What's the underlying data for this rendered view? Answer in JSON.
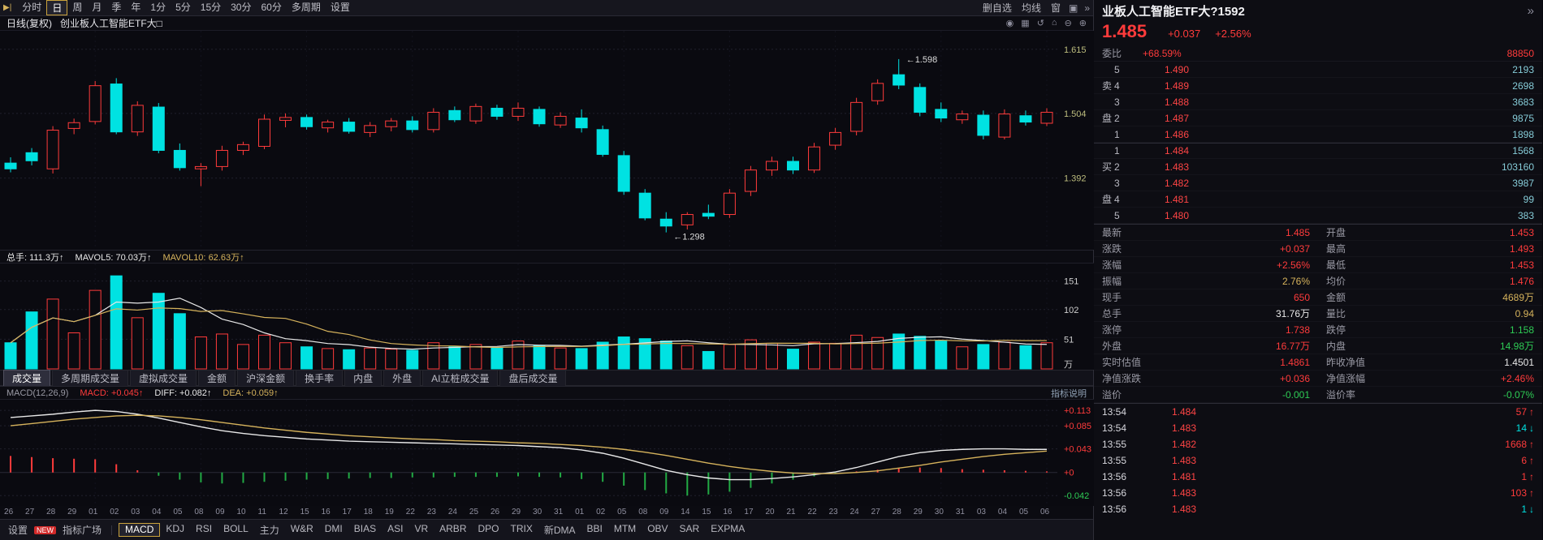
{
  "colors": {
    "up": "#ff3b3b",
    "down": "#00e2e2",
    "macd_neg": "#22aa44",
    "ma5": "#e8e8e8",
    "ma10": "#d6b35c",
    "axis_price": "#bdbd7e",
    "accent": "#c9a23c"
  },
  "icons": {
    "collapse": "▶|",
    "panel": "▣",
    "more": "»",
    "crosshair": "◉",
    "grid": "▦",
    "undo": "↺",
    "home": "⌂",
    "zoom_out": "⊖",
    "zoom_in": "⊕",
    "up_arrow": "↑",
    "down_arrow": "↓"
  },
  "toolbar": {
    "periods": [
      "分时",
      "日",
      "周",
      "月",
      "季",
      "年",
      "1分",
      "5分",
      "15分",
      "30分",
      "60分",
      "多周期",
      "设置"
    ],
    "active_period": "日",
    "right_items": [
      "删自选",
      "均线",
      "窗"
    ],
    "right_icons": [
      "panel",
      "more"
    ]
  },
  "chart_header": {
    "mode": "日线(复权)",
    "symbol": "创业板人工智能ETF大□",
    "icons": [
      "crosshair",
      "grid",
      "undo",
      "home",
      "zoom_out",
      "zoom_in"
    ]
  },
  "volume_header": {
    "zongshou_label": "总手:",
    "zongshou_value": "111.3万↑",
    "mavol5_label": "MAVOL5:",
    "mavol5_value": "70.03万↑",
    "mavol10_label": "MAVOL10:",
    "mavol10_value": "62.63万↑"
  },
  "volume_tabs": [
    "成交量",
    "多周期成交量",
    "虚拟成交量",
    "金额",
    "沪深金额",
    "换手率",
    "内盘",
    "外盘",
    "AI立桩成交量",
    "盘后成交量"
  ],
  "volume_tabs_active": "成交量",
  "macd_header": {
    "title": "MACD(12,26,9)",
    "macd_label": "MACD:",
    "macd_value": "+0.045↑",
    "diff_label": "DIFF:",
    "diff_value": "+0.082↑",
    "dea_label": "DEA:",
    "dea_value": "+0.059↑",
    "help": "指标说明"
  },
  "indicator_bar": {
    "settings": "设置",
    "new_badge": "NEW",
    "plaza": "指标广场",
    "indicators": [
      "MACD",
      "KDJ",
      "RSI",
      "BOLL",
      "主力",
      "W&R",
      "DMI",
      "BIAS",
      "ASI",
      "VR",
      "ARBR",
      "DPO",
      "TRIX",
      "新DMA",
      "BBI",
      "MTM",
      "OBV",
      "SAR",
      "EXPMA"
    ],
    "active": "MACD"
  },
  "quote_panel": {
    "title": "业板人工智能ETF大?1592",
    "price": "1.485",
    "change": "+0.037",
    "change_pct": "+2.56%",
    "weibi_label": "委比",
    "weibi_value": "+68.59%",
    "weicha_value": "88850",
    "order_book": [
      {
        "group": "",
        "level": "5",
        "price": "1.490",
        "vol": "2193"
      },
      {
        "group": "卖",
        "level": "4",
        "price": "1.489",
        "vol": "2698"
      },
      {
        "group": "",
        "level": "3",
        "price": "1.488",
        "vol": "3683"
      },
      {
        "group": "盘",
        "level": "2",
        "price": "1.487",
        "vol": "9875"
      },
      {
        "group": "",
        "level": "1",
        "price": "1.486",
        "vol": "1898"
      },
      {
        "group": "",
        "level": "1",
        "price": "1.484",
        "vol": "1568"
      },
      {
        "group": "买",
        "level": "2",
        "price": "1.483",
        "vol": "103160"
      },
      {
        "group": "",
        "level": "3",
        "price": "1.482",
        "vol": "3987"
      },
      {
        "group": "盘",
        "level": "4",
        "price": "1.481",
        "vol": "99"
      },
      {
        "group": "",
        "level": "5",
        "price": "1.480",
        "vol": "383"
      }
    ],
    "info": [
      {
        "label": "最新",
        "value": "1.485",
        "color": "red"
      },
      {
        "label": "开盘",
        "value": "1.453",
        "color": "red"
      },
      {
        "label": "涨跌",
        "value": "+0.037",
        "color": "red"
      },
      {
        "label": "最高",
        "value": "1.493",
        "color": "red"
      },
      {
        "label": "涨幅",
        "value": "+2.56%",
        "color": "red"
      },
      {
        "label": "最低",
        "value": "1.453",
        "color": "red"
      },
      {
        "label": "振幅",
        "value": "2.76%",
        "color": "yellow"
      },
      {
        "label": "均价",
        "value": "1.476",
        "color": "red"
      },
      {
        "label": "现手",
        "value": "650",
        "color": "red"
      },
      {
        "label": "金额",
        "value": "4689万",
        "color": "yellow"
      },
      {
        "label": "总手",
        "value": "31.76万",
        "color": "white"
      },
      {
        "label": "量比",
        "value": "0.94",
        "color": "yellow"
      },
      {
        "label": "涨停",
        "value": "1.738",
        "color": "red"
      },
      {
        "label": "跌停",
        "value": "1.158",
        "color": "green"
      },
      {
        "label": "外盘",
        "value": "16.77万",
        "color": "red"
      },
      {
        "label": "内盘",
        "value": "14.98万",
        "color": "green"
      },
      {
        "label": "实时估值",
        "value": "1.4861",
        "color": "red"
      },
      {
        "label": "昨收净值",
        "value": "1.4501",
        "color": "white"
      },
      {
        "label": "净值涨跌",
        "value": "+0.036",
        "color": "red"
      },
      {
        "label": "净值涨幅",
        "value": "+2.46%",
        "color": "red"
      },
      {
        "label": "溢价",
        "value": "-0.001",
        "color": "green"
      },
      {
        "label": "溢价率",
        "value": "-0.07%",
        "color": "green"
      }
    ],
    "ticks": [
      {
        "time": "13:54",
        "price": "1.484",
        "vol": "57",
        "dir": "up"
      },
      {
        "time": "13:54",
        "price": "1.483",
        "vol": "14",
        "dir": "down"
      },
      {
        "time": "13:55",
        "price": "1.482",
        "vol": "1668",
        "dir": "up"
      },
      {
        "time": "13:55",
        "price": "1.483",
        "vol": "6",
        "dir": "up"
      },
      {
        "time": "13:56",
        "price": "1.481",
        "vol": "1",
        "dir": "up"
      },
      {
        "time": "13:56",
        "price": "1.483",
        "vol": "103",
        "dir": "up"
      },
      {
        "time": "13:56",
        "price": "1.483",
        "vol": "1",
        "dir": "down"
      }
    ]
  },
  "chart_data": {
    "type": "candlestick",
    "title": "创业板人工智能ETF 日线(复权)",
    "dates": [
      "26",
      "27",
      "28",
      "29",
      "01",
      "02",
      "03",
      "04",
      "05",
      "08",
      "09",
      "10",
      "11",
      "12",
      "15",
      "16",
      "17",
      "18",
      "19",
      "22",
      "23",
      "24",
      "25",
      "26",
      "29",
      "30",
      "31",
      "01",
      "02",
      "05",
      "08",
      "09",
      "14",
      "15",
      "16",
      "17",
      "20",
      "21",
      "22",
      "23",
      "24",
      "27",
      "28",
      "29",
      "30",
      "31",
      "03",
      "04",
      "05",
      "06"
    ],
    "price_range": [
      1.275,
      1.64
    ],
    "price_axis_labels": [
      1.615,
      1.504,
      1.392
    ],
    "high_annotation": 1.598,
    "low_annotation": 1.298,
    "candles": [
      [
        1.418,
        1.428,
        1.402,
        1.408
      ],
      [
        1.436,
        1.444,
        1.414,
        1.422
      ],
      [
        1.408,
        1.482,
        1.4,
        1.475
      ],
      [
        1.478,
        1.495,
        1.468,
        1.488
      ],
      [
        1.49,
        1.56,
        1.485,
        1.552
      ],
      [
        1.555,
        1.565,
        1.468,
        1.472
      ],
      [
        1.472,
        1.525,
        1.465,
        1.518
      ],
      [
        1.515,
        1.522,
        1.435,
        1.44
      ],
      [
        1.44,
        1.452,
        1.405,
        1.41
      ],
      [
        1.408,
        1.418,
        1.378,
        1.412
      ],
      [
        1.412,
        1.448,
        1.405,
        1.44
      ],
      [
        1.44,
        1.455,
        1.432,
        1.45
      ],
      [
        1.447,
        1.502,
        1.442,
        1.494
      ],
      [
        1.492,
        1.504,
        1.48,
        1.497
      ],
      [
        1.497,
        1.502,
        1.476,
        1.481
      ],
      [
        1.479,
        1.493,
        1.471,
        1.489
      ],
      [
        1.489,
        1.496,
        1.469,
        1.473
      ],
      [
        1.471,
        1.489,
        1.463,
        1.483
      ],
      [
        1.481,
        1.496,
        1.473,
        1.491
      ],
      [
        1.491,
        1.499,
        1.471,
        1.476
      ],
      [
        1.476,
        1.513,
        1.471,
        1.506
      ],
      [
        1.509,
        1.516,
        1.489,
        1.493
      ],
      [
        1.491,
        1.521,
        1.486,
        1.516
      ],
      [
        1.513,
        1.519,
        1.493,
        1.499
      ],
      [
        1.499,
        1.523,
        1.491,
        1.513
      ],
      [
        1.511,
        1.516,
        1.481,
        1.486
      ],
      [
        1.484,
        1.506,
        1.479,
        1.499
      ],
      [
        1.496,
        1.511,
        1.471,
        1.479
      ],
      [
        1.476,
        1.483,
        1.429,
        1.433
      ],
      [
        1.431,
        1.439,
        1.363,
        1.369
      ],
      [
        1.366,
        1.373,
        1.319,
        1.323
      ],
      [
        1.321,
        1.333,
        1.298,
        1.309
      ],
      [
        1.311,
        1.333,
        1.303,
        1.329
      ],
      [
        1.331,
        1.346,
        1.321,
        1.326
      ],
      [
        1.329,
        1.373,
        1.323,
        1.366
      ],
      [
        1.369,
        1.413,
        1.361,
        1.406
      ],
      [
        1.406,
        1.429,
        1.396,
        1.421
      ],
      [
        1.421,
        1.429,
        1.399,
        1.406
      ],
      [
        1.406,
        1.453,
        1.401,
        1.446
      ],
      [
        1.449,
        1.479,
        1.441,
        1.471
      ],
      [
        1.473,
        1.531,
        1.466,
        1.523
      ],
      [
        1.526,
        1.563,
        1.519,
        1.556
      ],
      [
        1.571,
        1.598,
        1.546,
        1.553
      ],
      [
        1.549,
        1.556,
        1.499,
        1.506
      ],
      [
        1.511,
        1.523,
        1.489,
        1.496
      ],
      [
        1.493,
        1.509,
        1.486,
        1.503
      ],
      [
        1.501,
        1.509,
        1.459,
        1.466
      ],
      [
        1.463,
        1.511,
        1.459,
        1.503
      ],
      [
        1.5,
        1.509,
        1.483,
        1.489
      ],
      [
        1.487,
        1.513,
        1.482,
        1.506
      ]
    ],
    "volume": {
      "values": [
        45,
        98,
        120,
        62,
        135,
        160,
        88,
        130,
        95,
        55,
        60,
        42,
        58,
        45,
        38,
        35,
        33,
        36,
        34,
        32,
        45,
        38,
        42,
        36,
        48,
        40,
        36,
        35,
        46,
        55,
        52,
        48,
        40,
        30,
        42,
        50,
        44,
        34,
        46,
        44,
        58,
        54,
        60,
        56,
        48,
        38,
        42,
        46,
        40,
        45
      ],
      "axis_labels": [
        151,
        102,
        51
      ],
      "unit": "万",
      "max": 170
    },
    "macd": {
      "range": [
        -0.055,
        0.125
      ],
      "axis_labels": [
        "+0.113",
        "+0.085",
        "+0.043",
        "+0",
        "-0.042"
      ],
      "diff": [
        0.1,
        0.103,
        0.106,
        0.11,
        0.113,
        0.111,
        0.106,
        0.099,
        0.091,
        0.083,
        0.076,
        0.071,
        0.067,
        0.064,
        0.061,
        0.059,
        0.057,
        0.056,
        0.055,
        0.054,
        0.053,
        0.052,
        0.051,
        0.05,
        0.049,
        0.047,
        0.045,
        0.041,
        0.035,
        0.026,
        0.015,
        0.004,
        -0.004,
        -0.01,
        -0.013,
        -0.013,
        -0.011,
        -0.008,
        -0.004,
        0.001,
        0.009,
        0.019,
        0.029,
        0.036,
        0.04,
        0.042,
        0.043,
        0.043,
        0.042,
        0.042
      ],
      "dea": [
        0.085,
        0.089,
        0.093,
        0.097,
        0.1,
        0.103,
        0.104,
        0.103,
        0.1,
        0.096,
        0.091,
        0.086,
        0.081,
        0.077,
        0.073,
        0.07,
        0.067,
        0.065,
        0.063,
        0.061,
        0.06,
        0.058,
        0.057,
        0.056,
        0.054,
        0.053,
        0.051,
        0.049,
        0.046,
        0.042,
        0.037,
        0.031,
        0.024,
        0.017,
        0.011,
        0.006,
        0.002,
        -0.001,
        -0.002,
        -0.002,
        0.0,
        0.003,
        0.008,
        0.013,
        0.019,
        0.024,
        0.029,
        0.033,
        0.036,
        0.039
      ],
      "hist": [
        0.03,
        0.028,
        0.026,
        0.025,
        0.024,
        0.015,
        0.004,
        -0.006,
        -0.013,
        -0.018,
        -0.02,
        -0.019,
        -0.017,
        -0.015,
        -0.013,
        -0.012,
        -0.011,
        -0.01,
        -0.01,
        -0.009,
        -0.009,
        -0.008,
        -0.008,
        -0.008,
        -0.007,
        -0.008,
        -0.009,
        -0.012,
        -0.017,
        -0.024,
        -0.032,
        -0.038,
        -0.042,
        -0.04,
        -0.035,
        -0.028,
        -0.02,
        -0.013,
        -0.007,
        -0.002,
        0.002,
        0.005,
        0.008,
        0.009,
        0.008,
        0.006,
        0.005,
        0.004,
        0.003,
        0.002
      ]
    }
  }
}
